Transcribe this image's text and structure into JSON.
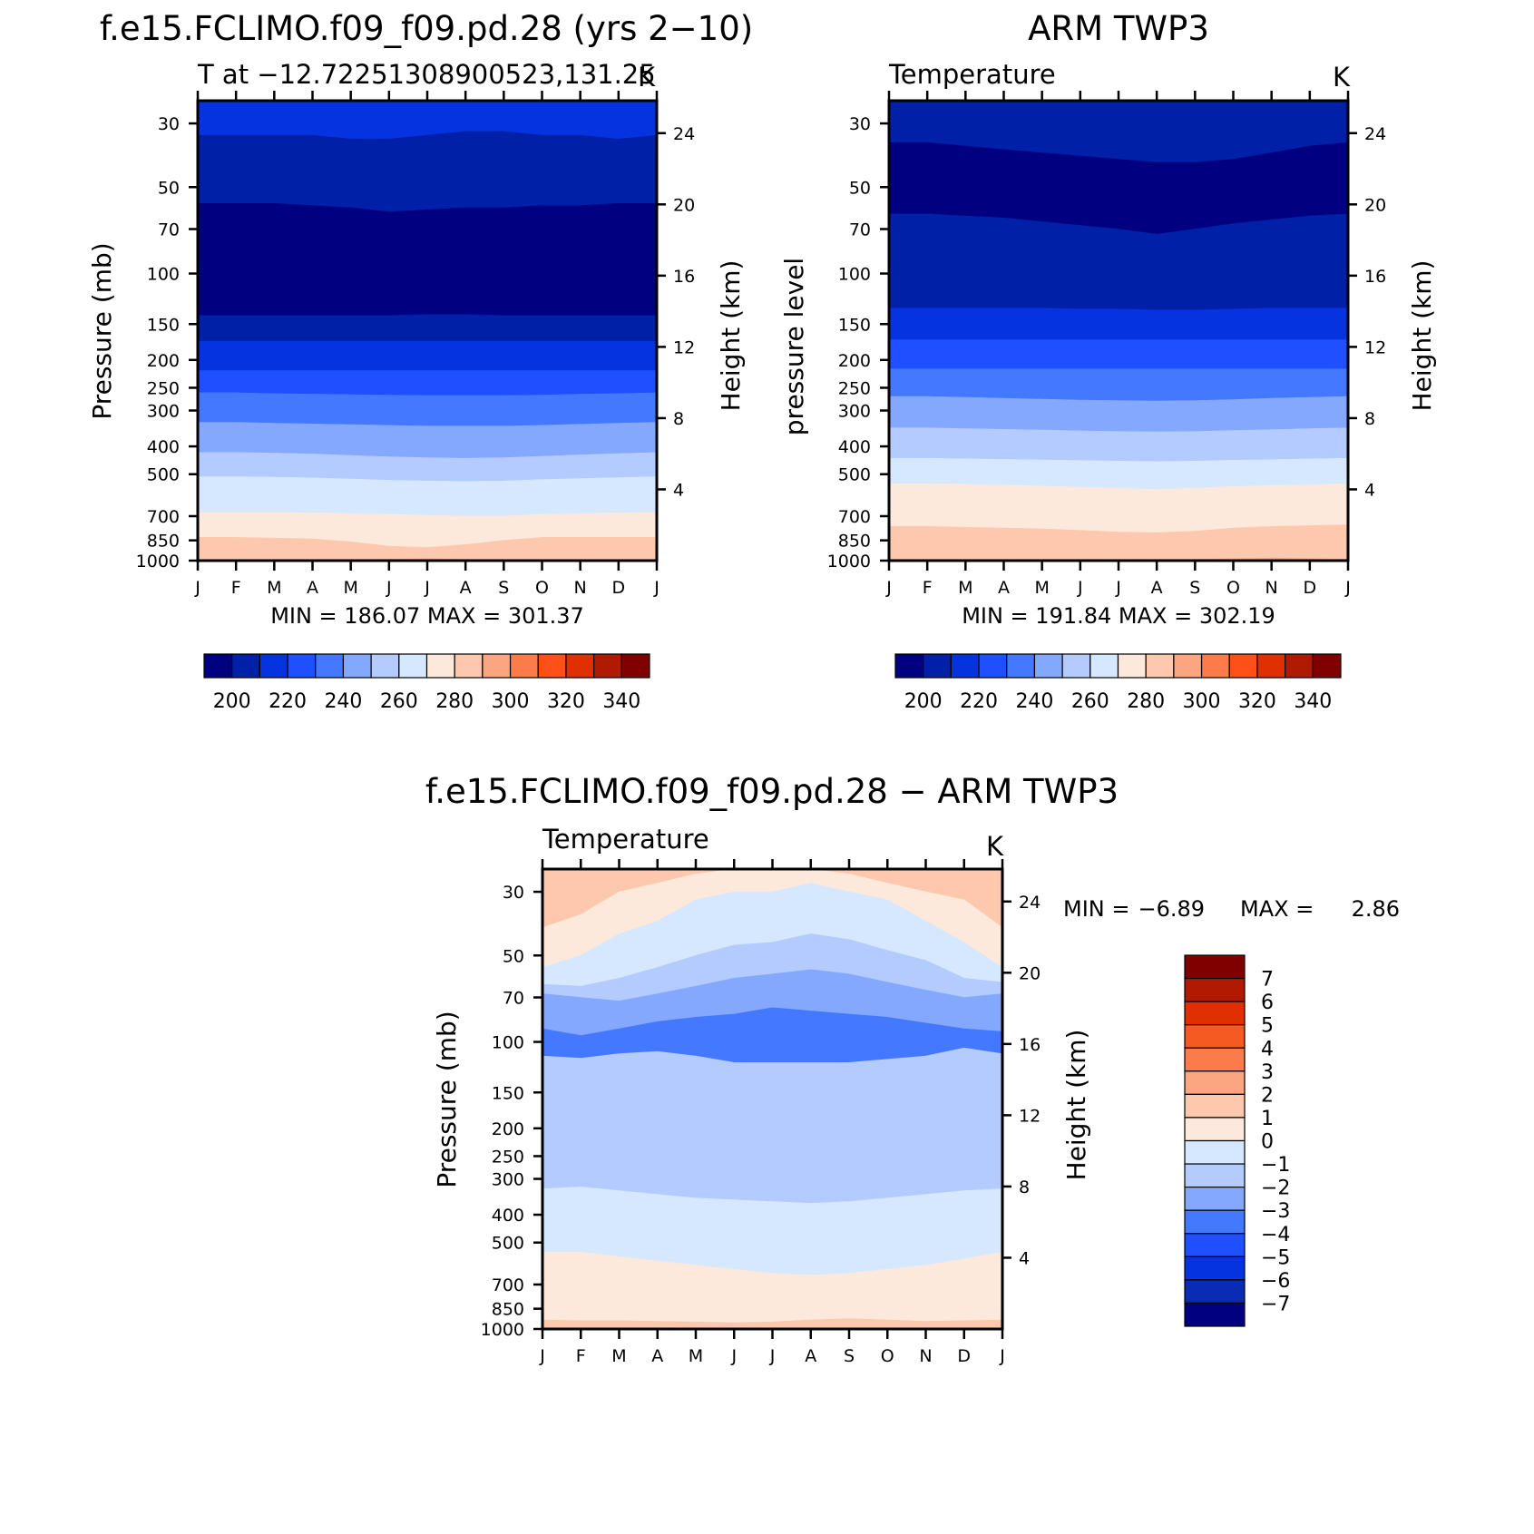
{
  "colors": {
    "abs_levels": [
      "#000080",
      "#0020a8",
      "#0633e0",
      "#1f4fff",
      "#4479ff",
      "#85a8ff",
      "#b3cbff",
      "#d6e8ff",
      "#fde9dc",
      "#fdc8ad",
      "#fca581",
      "#fc7b4a",
      "#ff501a",
      "#e03000",
      "#b01a00",
      "#800000"
    ],
    "diff_levels": [
      "#000080",
      "#0a2bb3",
      "#0633e0",
      "#1f4fff",
      "#4479ff",
      "#85a8ff",
      "#b3cbff",
      "#d6e8ff",
      "#fde9dc",
      "#fdc8ad",
      "#fca581",
      "#fc7b4a",
      "#f55a22",
      "#e03000",
      "#b01a00",
      "#800000"
    ]
  },
  "chart_data": [
    {
      "id": "model",
      "type": "heatmap",
      "title": "f.e15.FCLIMO.f09_f09.pd.28 (yrs 2−10)",
      "subtitle_left": "T at −12.72251308900523,131.25",
      "subtitle_right": "K",
      "ylabel": "Pressure (mb)",
      "ylabel_right": "Height (km)",
      "x_categories": [
        "J",
        "F",
        "M",
        "A",
        "M",
        "J",
        "J",
        "A",
        "S",
        "O",
        "N",
        "D",
        "J"
      ],
      "pressure_ticks": [
        "30",
        "50",
        "70",
        "100",
        "150",
        "200",
        "250",
        "300",
        "400",
        "500",
        "700",
        "850",
        "1000"
      ],
      "height_ticks": [
        "24",
        "20",
        "16",
        "12",
        "8",
        "4"
      ],
      "ylim_mb": [
        1000,
        25
      ],
      "min_label": "MIN = 186.07 MAX = 301.37",
      "min": 186.07,
      "max": 301.37,
      "contour_boundaries_mb": [
        [
          33,
          33,
          33,
          33,
          34,
          34,
          33,
          32,
          32,
          33,
          33,
          34,
          33
        ],
        [
          57,
          57,
          57,
          58,
          59,
          61,
          60,
          59,
          59,
          58,
          58,
          57,
          57
        ],
        [
          140,
          140,
          140,
          140,
          140,
          140,
          139,
          139,
          140,
          140,
          140,
          140,
          140
        ],
        [
          172,
          172,
          172,
          172,
          172,
          172,
          172,
          172,
          172,
          172,
          172,
          172,
          172
        ],
        [
          218,
          218,
          218,
          218,
          218,
          218,
          218,
          218,
          218,
          218,
          218,
          218,
          218
        ],
        [
          260,
          260,
          262,
          263,
          264,
          265,
          266,
          266,
          266,
          265,
          263,
          262,
          260
        ],
        [
          330,
          330,
          332,
          334,
          336,
          338,
          340,
          340,
          340,
          338,
          335,
          332,
          330
        ],
        [
          420,
          420,
          422,
          425,
          430,
          435,
          438,
          440,
          438,
          433,
          428,
          424,
          420
        ],
        [
          510,
          510,
          512,
          515,
          520,
          525,
          528,
          530,
          528,
          522,
          518,
          514,
          510
        ],
        [
          680,
          680,
          680,
          682,
          685,
          690,
          695,
          700,
          700,
          690,
          685,
          682,
          680
        ],
        [
          830,
          830,
          835,
          840,
          860,
          890,
          900,
          880,
          850,
          830,
          830,
          830,
          830
        ],
        [
          995,
          995,
          995,
          995,
          995,
          990,
          985,
          990,
          995,
          995,
          995,
          995,
          995
        ]
      ],
      "band_levels": [
        2,
        1,
        0,
        1,
        2,
        3,
        4,
        5,
        6,
        7,
        8,
        9,
        10
      ]
    },
    {
      "id": "obs",
      "type": "heatmap",
      "title": "ARM TWP3",
      "subtitle_left": "Temperature",
      "subtitle_right": "K",
      "ylabel": "pressure level",
      "ylabel_right": "Height (km)",
      "x_categories": [
        "J",
        "F",
        "M",
        "A",
        "M",
        "J",
        "J",
        "A",
        "S",
        "O",
        "N",
        "D",
        "J"
      ],
      "pressure_ticks": [
        "30",
        "50",
        "70",
        "100",
        "150",
        "200",
        "250",
        "300",
        "400",
        "500",
        "700",
        "850",
        "1000"
      ],
      "height_ticks": [
        "24",
        "20",
        "16",
        "12",
        "8",
        "4"
      ],
      "ylim_mb": [
        1000,
        25
      ],
      "min_label": "MIN = 191.84 MAX = 302.19",
      "min": 191.84,
      "max": 302.19,
      "contour_boundaries_mb": [
        [
          35,
          35,
          36,
          37,
          38,
          39,
          40,
          41,
          41,
          40,
          38,
          36,
          35
        ],
        [
          62,
          62,
          63,
          64,
          66,
          68,
          70,
          73,
          70,
          67,
          65,
          63,
          62
        ],
        [
          132,
          132,
          132,
          132,
          132,
          133,
          133,
          134,
          134,
          133,
          132,
          132,
          132
        ],
        [
          170,
          170,
          170,
          170,
          170,
          170,
          170,
          170,
          170,
          170,
          170,
          170,
          170
        ],
        [
          215,
          215,
          215,
          215,
          215,
          215,
          215,
          215,
          215,
          215,
          215,
          215,
          215
        ],
        [
          268,
          268,
          270,
          272,
          274,
          276,
          277,
          278,
          277,
          275,
          272,
          270,
          268
        ],
        [
          345,
          345,
          347,
          349,
          351,
          353,
          355,
          356,
          355,
          352,
          350,
          347,
          345
        ],
        [
          440,
          440,
          442,
          444,
          446,
          448,
          450,
          452,
          450,
          447,
          445,
          442,
          440
        ],
        [
          540,
          540,
          542,
          546,
          550,
          555,
          560,
          565,
          560,
          552,
          548,
          544,
          540
        ],
        [
          760,
          760,
          765,
          770,
          775,
          785,
          795,
          800,
          790,
          770,
          760,
          755,
          750
        ],
        [
          990,
          990,
          990,
          990,
          990,
          990,
          990,
          990,
          990,
          985,
          980,
          985,
          990
        ]
      ],
      "band_levels": [
        1,
        0,
        1,
        2,
        3,
        4,
        5,
        6,
        7,
        8,
        9,
        10
      ]
    },
    {
      "id": "diff",
      "type": "heatmap",
      "title": "f.e15.FCLIMO.f09_f09.pd.28 − ARM TWP3",
      "subtitle_left": "Temperature",
      "subtitle_right": "K",
      "ylabel": "Pressure (mb)",
      "ylabel_right": "Height (km)",
      "x_categories": [
        "J",
        "F",
        "M",
        "A",
        "M",
        "J",
        "J",
        "A",
        "S",
        "O",
        "N",
        "D",
        "J"
      ],
      "pressure_ticks": [
        "30",
        "50",
        "70",
        "100",
        "150",
        "200",
        "250",
        "300",
        "400",
        "500",
        "700",
        "850",
        "1000"
      ],
      "height_ticks": [
        "24",
        "20",
        "16",
        "12",
        "8",
        "4"
      ],
      "ylim_mb": [
        1000,
        25
      ],
      "min_label": "MIN =",
      "min_value": "−6.89",
      "max_label": "MAX =",
      "max_value": "2.86",
      "min": -6.89,
      "max": 2.86,
      "contour_boundaries_mb": [
        [
          40,
          36,
          30,
          28,
          26,
          25,
          25,
          25,
          26,
          28,
          30,
          32,
          40
        ],
        [
          55,
          50,
          42,
          38,
          32,
          30,
          30,
          28,
          30,
          32,
          38,
          45,
          55
        ],
        [
          63,
          64,
          60,
          55,
          50,
          46,
          45,
          42,
          44,
          48,
          52,
          60,
          62
        ],
        [
          68,
          70,
          72,
          68,
          64,
          60,
          58,
          56,
          58,
          62,
          66,
          70,
          68
        ],
        [
          90,
          95,
          90,
          85,
          82,
          80,
          76,
          78,
          80,
          82,
          86,
          90,
          92
        ],
        [
          112,
          114,
          110,
          108,
          112,
          118,
          118,
          118,
          118,
          115,
          112,
          105,
          110
        ],
        [
          325,
          320,
          330,
          340,
          350,
          355,
          360,
          365,
          360,
          350,
          340,
          330,
          325
        ],
        [
          540,
          540,
          560,
          580,
          600,
          620,
          640,
          650,
          640,
          620,
          600,
          570,
          540
        ],
        [
          930,
          935,
          935,
          940,
          945,
          950,
          945,
          930,
          920,
          930,
          940,
          935,
          930
        ]
      ],
      "band_levels": [
        9,
        8,
        7,
        6,
        5,
        4,
        6,
        7,
        8,
        9
      ],
      "colorbar_labels": [
        "7",
        "6",
        "5",
        "4",
        "3",
        "2",
        "1",
        "0",
        "−1",
        "−2",
        "−3",
        "−4",
        "−5",
        "−6",
        "−7"
      ]
    }
  ],
  "colorbars": {
    "abs_labels": [
      "200",
      "220",
      "240",
      "260",
      "280",
      "300",
      "320",
      "340"
    ]
  }
}
